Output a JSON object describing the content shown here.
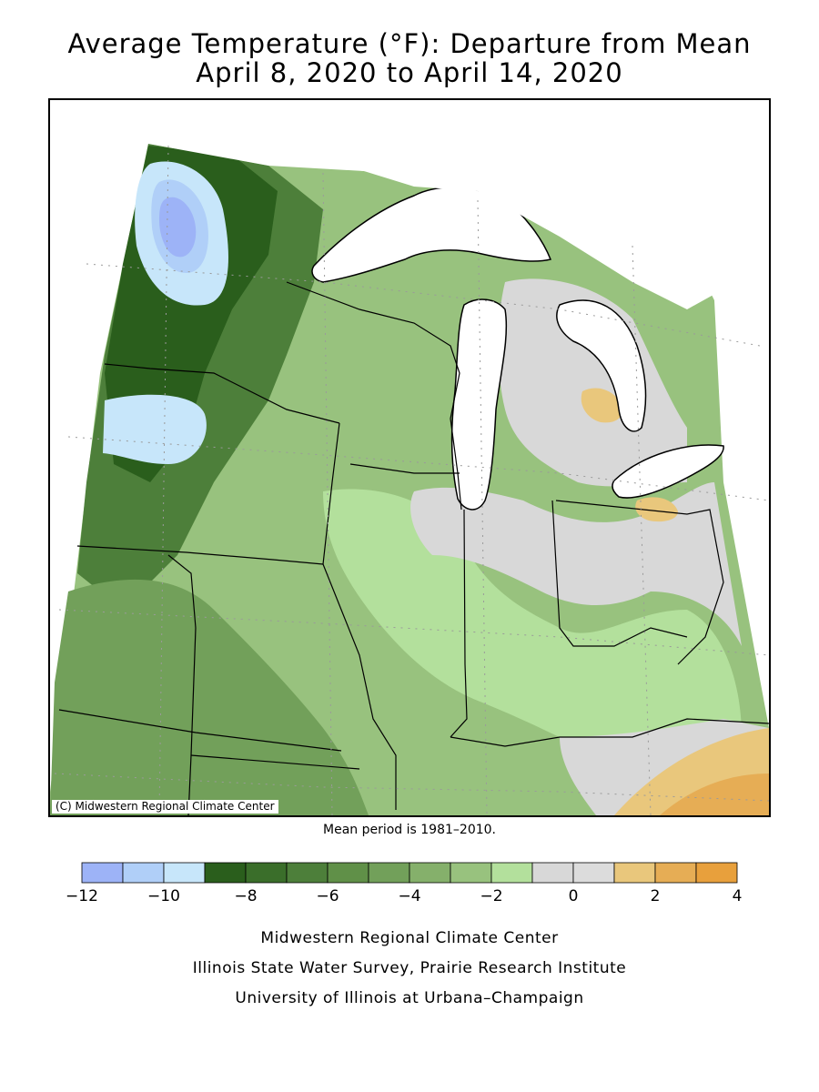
{
  "title_line1": "Average Temperature (°F): Departure from Mean",
  "title_line2": "April 8, 2020 to April 14, 2020",
  "copyright": "(C) Midwestern Regional Climate Center",
  "mean_note": "Mean period is 1981–2010.",
  "legend": {
    "colors": [
      "#9db3f7",
      "#b0cff8",
      "#c7e6fa",
      "#2a5e1c",
      "#3a6e2a",
      "#4d7f3a",
      "#609048",
      "#72a05a",
      "#85b06b",
      "#98c27e",
      "#b3e09c",
      "#d8d8d8",
      "#dcdcdc",
      "#e9c77c",
      "#e6ad55",
      "#e8a03c"
    ],
    "tick_labels": [
      "−12",
      "−10",
      "−8",
      "−6",
      "−4",
      "−2",
      "0",
      "2",
      "4"
    ]
  },
  "footer": {
    "line1": "Midwestern Regional Climate Center",
    "line2": "Illinois State Water Survey, Prairie Research Institute",
    "line3": "University of Illinois at Urbana–Champaign"
  }
}
